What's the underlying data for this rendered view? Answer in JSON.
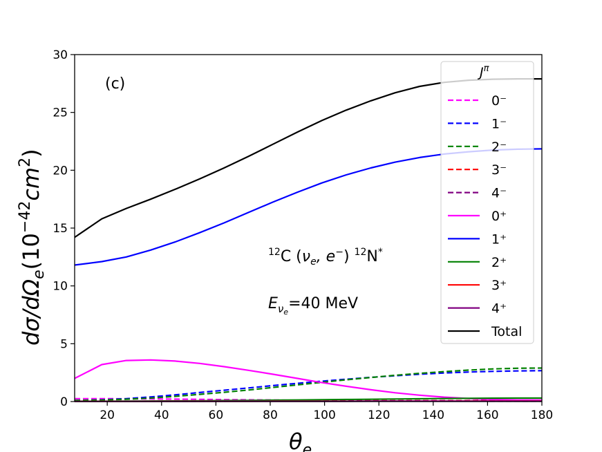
{
  "chart_data": {
    "type": "line",
    "panel_label": "(c)",
    "xlabel": "θ",
    "xlabel_sub": "e",
    "ylabel": "dσ/dΩ",
    "ylabel_sub": "e",
    "ylabel_units_pre": "(10",
    "ylabel_units_exp": "−42",
    "ylabel_units_mid": "cm",
    "ylabel_units_exp2": "2",
    "ylabel_units_post": ")",
    "xlim": [
      8,
      180
    ],
    "ylim": [
      0,
      30
    ],
    "xticks": [
      "20",
      "40",
      "60",
      "80",
      "100",
      "120",
      "140",
      "160",
      "180"
    ],
    "yticks": [
      "0",
      "5",
      "10",
      "15",
      "20",
      "25",
      "30"
    ],
    "annotation_reaction": {
      "sup1": "12",
      "c": "C (",
      "nu": "ν",
      "nu_sub": "e",
      "sep": ", e",
      "minus": "−",
      "close": ") ",
      "sup2": "12",
      "n": "N",
      "star": "*"
    },
    "annotation_energy": {
      "e": "E",
      "nu": "ν",
      "nu_sub": "e",
      "value": "=40 MeV"
    },
    "legend_title": "J",
    "legend_title_sup": "π",
    "x": [
      8,
      18,
      27,
      36,
      45,
      54,
      63,
      72,
      81,
      90,
      99,
      108,
      117,
      126,
      135,
      144,
      153,
      162,
      171,
      180
    ],
    "series": [
      {
        "name": "0⁻",
        "color": "#ff00ff",
        "dash": true,
        "values": [
          0.25,
          0.25,
          0.24,
          0.23,
          0.21,
          0.19,
          0.17,
          0.15,
          0.13,
          0.11,
          0.1,
          0.08,
          0.07,
          0.06,
          0.05,
          0.04,
          0.04,
          0.03,
          0.03,
          0.03
        ]
      },
      {
        "name": "1⁻",
        "color": "#0000ff",
        "dash": true,
        "values": [
          0.1,
          0.15,
          0.25,
          0.4,
          0.58,
          0.78,
          0.98,
          1.18,
          1.38,
          1.58,
          1.76,
          1.93,
          2.09,
          2.23,
          2.36,
          2.47,
          2.55,
          2.61,
          2.65,
          2.67
        ]
      },
      {
        "name": "2⁻",
        "color": "#008000",
        "dash": true,
        "values": [
          0.1,
          0.13,
          0.2,
          0.3,
          0.45,
          0.62,
          0.8,
          1.0,
          1.22,
          1.44,
          1.66,
          1.88,
          2.08,
          2.27,
          2.44,
          2.59,
          2.72,
          2.82,
          2.88,
          2.9
        ]
      },
      {
        "name": "3⁻",
        "color": "#ff0000",
        "dash": true,
        "values": [
          0.02,
          0.02,
          0.02,
          0.03,
          0.03,
          0.03,
          0.04,
          0.04,
          0.05,
          0.05,
          0.06,
          0.06,
          0.07,
          0.07,
          0.08,
          0.08,
          0.08,
          0.09,
          0.09,
          0.09
        ]
      },
      {
        "name": "4⁻",
        "color": "#800080",
        "dash": true,
        "values": [
          0.02,
          0.02,
          0.02,
          0.02,
          0.03,
          0.03,
          0.03,
          0.04,
          0.04,
          0.04,
          0.05,
          0.05,
          0.05,
          0.06,
          0.06,
          0.06,
          0.06,
          0.07,
          0.07,
          0.07
        ]
      },
      {
        "name": "0⁺",
        "color": "#ff00ff",
        "dash": false,
        "values": [
          2.0,
          3.2,
          3.55,
          3.6,
          3.5,
          3.3,
          3.02,
          2.7,
          2.36,
          2.0,
          1.64,
          1.32,
          1.02,
          0.76,
          0.55,
          0.38,
          0.26,
          0.18,
          0.14,
          0.13
        ]
      },
      {
        "name": "1⁺",
        "color": "#0000ff",
        "dash": false,
        "values": [
          11.8,
          12.1,
          12.5,
          13.1,
          13.8,
          14.6,
          15.45,
          16.35,
          17.25,
          18.1,
          18.9,
          19.6,
          20.2,
          20.7,
          21.1,
          21.4,
          21.6,
          21.75,
          21.82,
          21.85
        ]
      },
      {
        "name": "2⁺",
        "color": "#008000",
        "dash": false,
        "values": [
          0.03,
          0.03,
          0.04,
          0.05,
          0.06,
          0.07,
          0.09,
          0.1,
          0.12,
          0.14,
          0.16,
          0.18,
          0.2,
          0.22,
          0.24,
          0.26,
          0.28,
          0.29,
          0.3,
          0.3
        ]
      },
      {
        "name": "3⁺",
        "color": "#ff0000",
        "dash": false,
        "values": [
          0.01,
          0.01,
          0.01,
          0.01,
          0.02,
          0.02,
          0.02,
          0.02,
          0.03,
          0.03,
          0.03,
          0.03,
          0.04,
          0.04,
          0.04,
          0.04,
          0.05,
          0.05,
          0.05,
          0.05
        ]
      },
      {
        "name": "4⁺",
        "color": "#800080",
        "dash": false,
        "values": [
          0.01,
          0.01,
          0.01,
          0.01,
          0.01,
          0.01,
          0.02,
          0.02,
          0.02,
          0.02,
          0.02,
          0.02,
          0.03,
          0.03,
          0.03,
          0.03,
          0.03,
          0.03,
          0.03,
          0.03
        ]
      },
      {
        "name": "Total",
        "color": "#000000",
        "dash": false,
        "values": [
          14.2,
          15.8,
          16.7,
          17.5,
          18.35,
          19.25,
          20.2,
          21.2,
          22.25,
          23.3,
          24.3,
          25.2,
          26.0,
          26.7,
          27.25,
          27.6,
          27.78,
          27.87,
          27.9,
          27.9
        ]
      }
    ]
  }
}
